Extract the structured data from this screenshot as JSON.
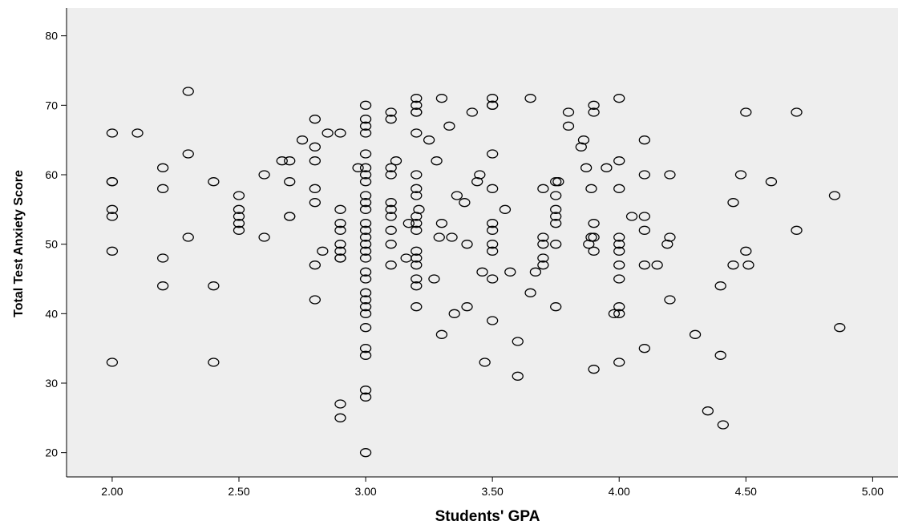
{
  "chart_data": {
    "type": "scatter",
    "xlabel": "Students' GPA",
    "ylabel": "Total Test Anxiety Score",
    "xlim": [
      1.82,
      5.1
    ],
    "ylim": [
      16.5,
      84
    ],
    "x_ticks": [
      "2.00",
      "2.50",
      "3.00",
      "3.50",
      "4.00",
      "4.50",
      "5.00"
    ],
    "y_ticks": [
      "20",
      "30",
      "40",
      "50",
      "60",
      "70",
      "80"
    ],
    "grid": false,
    "background": "#eeeeee",
    "marker": "hollow-circle",
    "points": [
      [
        2.0,
        66
      ],
      [
        2.0,
        59
      ],
      [
        2.0,
        59
      ],
      [
        2.0,
        55
      ],
      [
        2.0,
        54
      ],
      [
        2.0,
        49
      ],
      [
        2.0,
        33
      ],
      [
        2.1,
        66
      ],
      [
        2.2,
        61
      ],
      [
        2.2,
        58
      ],
      [
        2.2,
        48
      ],
      [
        2.2,
        44
      ],
      [
        2.3,
        72
      ],
      [
        2.3,
        63
      ],
      [
        2.3,
        51
      ],
      [
        2.4,
        59
      ],
      [
        2.4,
        44
      ],
      [
        2.4,
        33
      ],
      [
        2.5,
        57
      ],
      [
        2.5,
        55
      ],
      [
        2.5,
        54
      ],
      [
        2.5,
        53
      ],
      [
        2.5,
        52
      ],
      [
        2.6,
        60
      ],
      [
        2.6,
        51
      ],
      [
        2.67,
        62
      ],
      [
        2.7,
        62
      ],
      [
        2.7,
        59
      ],
      [
        2.7,
        54
      ],
      [
        2.7,
        54
      ],
      [
        2.75,
        65
      ],
      [
        2.8,
        68
      ],
      [
        2.8,
        64
      ],
      [
        2.8,
        62
      ],
      [
        2.8,
        58
      ],
      [
        2.8,
        56
      ],
      [
        2.8,
        47
      ],
      [
        2.8,
        42
      ],
      [
        2.83,
        49
      ],
      [
        2.85,
        66
      ],
      [
        2.9,
        66
      ],
      [
        2.9,
        55
      ],
      [
        2.9,
        53
      ],
      [
        2.9,
        52
      ],
      [
        2.9,
        50
      ],
      [
        2.9,
        49
      ],
      [
        2.9,
        48
      ],
      [
        2.9,
        48
      ],
      [
        2.9,
        27
      ],
      [
        2.9,
        25
      ],
      [
        2.97,
        61
      ],
      [
        3.0,
        70
      ],
      [
        3.0,
        68
      ],
      [
        3.0,
        67
      ],
      [
        3.0,
        66
      ],
      [
        3.0,
        63
      ],
      [
        3.0,
        61
      ],
      [
        3.0,
        60
      ],
      [
        3.0,
        59
      ],
      [
        3.0,
        57
      ],
      [
        3.0,
        56
      ],
      [
        3.0,
        55
      ],
      [
        3.0,
        53
      ],
      [
        3.0,
        52
      ],
      [
        3.0,
        51
      ],
      [
        3.0,
        50
      ],
      [
        3.0,
        49
      ],
      [
        3.0,
        48
      ],
      [
        3.0,
        46
      ],
      [
        3.0,
        45
      ],
      [
        3.0,
        43
      ],
      [
        3.0,
        42
      ],
      [
        3.0,
        41
      ],
      [
        3.0,
        40
      ],
      [
        3.0,
        38
      ],
      [
        3.0,
        35
      ],
      [
        3.0,
        34
      ],
      [
        3.0,
        29
      ],
      [
        3.0,
        28
      ],
      [
        3.0,
        20
      ],
      [
        3.1,
        69
      ],
      [
        3.1,
        68
      ],
      [
        3.1,
        61
      ],
      [
        3.1,
        60
      ],
      [
        3.1,
        56
      ],
      [
        3.1,
        55
      ],
      [
        3.1,
        54
      ],
      [
        3.1,
        52
      ],
      [
        3.1,
        50
      ],
      [
        3.1,
        47
      ],
      [
        3.12,
        62
      ],
      [
        3.16,
        48
      ],
      [
        3.17,
        53
      ],
      [
        3.2,
        71
      ],
      [
        3.2,
        70
      ],
      [
        3.2,
        69
      ],
      [
        3.2,
        69
      ],
      [
        3.2,
        66
      ],
      [
        3.2,
        60
      ],
      [
        3.2,
        58
      ],
      [
        3.2,
        57
      ],
      [
        3.2,
        54
      ],
      [
        3.2,
        53
      ],
      [
        3.2,
        52
      ],
      [
        3.2,
        49
      ],
      [
        3.2,
        48
      ],
      [
        3.2,
        47
      ],
      [
        3.2,
        45
      ],
      [
        3.2,
        44
      ],
      [
        3.2,
        41
      ],
      [
        3.21,
        55
      ],
      [
        3.25,
        65
      ],
      [
        3.27,
        45
      ],
      [
        3.28,
        62
      ],
      [
        3.29,
        51
      ],
      [
        3.3,
        71
      ],
      [
        3.3,
        53
      ],
      [
        3.3,
        37
      ],
      [
        3.33,
        67
      ],
      [
        3.34,
        51
      ],
      [
        3.35,
        40
      ],
      [
        3.36,
        57
      ],
      [
        3.39,
        56
      ],
      [
        3.4,
        50
      ],
      [
        3.4,
        41
      ],
      [
        3.42,
        69
      ],
      [
        3.44,
        59
      ],
      [
        3.45,
        60
      ],
      [
        3.46,
        46
      ],
      [
        3.47,
        33
      ],
      [
        3.5,
        71
      ],
      [
        3.5,
        70
      ],
      [
        3.5,
        70
      ],
      [
        3.5,
        63
      ],
      [
        3.5,
        58
      ],
      [
        3.5,
        53
      ],
      [
        3.5,
        52
      ],
      [
        3.5,
        50
      ],
      [
        3.5,
        49
      ],
      [
        3.5,
        45
      ],
      [
        3.5,
        39
      ],
      [
        3.55,
        55
      ],
      [
        3.57,
        46
      ],
      [
        3.6,
        36
      ],
      [
        3.6,
        31
      ],
      [
        3.65,
        71
      ],
      [
        3.65,
        43
      ],
      [
        3.67,
        46
      ],
      [
        3.7,
        58
      ],
      [
        3.7,
        51
      ],
      [
        3.7,
        50
      ],
      [
        3.7,
        48
      ],
      [
        3.7,
        47
      ],
      [
        3.75,
        59
      ],
      [
        3.75,
        57
      ],
      [
        3.75,
        55
      ],
      [
        3.75,
        54
      ],
      [
        3.75,
        53
      ],
      [
        3.75,
        50
      ],
      [
        3.75,
        41
      ],
      [
        3.76,
        59
      ],
      [
        3.8,
        69
      ],
      [
        3.8,
        67
      ],
      [
        3.85,
        64
      ],
      [
        3.86,
        65
      ],
      [
        3.87,
        61
      ],
      [
        3.88,
        50
      ],
      [
        3.89,
        58
      ],
      [
        3.89,
        51
      ],
      [
        3.9,
        70
      ],
      [
        3.9,
        69
      ],
      [
        3.9,
        53
      ],
      [
        3.9,
        51
      ],
      [
        3.9,
        49
      ],
      [
        3.9,
        32
      ],
      [
        3.95,
        61
      ],
      [
        3.98,
        40
      ],
      [
        4.0,
        71
      ],
      [
        4.0,
        62
      ],
      [
        4.0,
        58
      ],
      [
        4.0,
        51
      ],
      [
        4.0,
        50
      ],
      [
        4.0,
        49
      ],
      [
        4.0,
        47
      ],
      [
        4.0,
        45
      ],
      [
        4.0,
        41
      ],
      [
        4.0,
        40
      ],
      [
        4.0,
        33
      ],
      [
        4.05,
        54
      ],
      [
        4.1,
        65
      ],
      [
        4.1,
        60
      ],
      [
        4.1,
        54
      ],
      [
        4.1,
        52
      ],
      [
        4.1,
        47
      ],
      [
        4.1,
        35
      ],
      [
        4.15,
        47
      ],
      [
        4.19,
        50
      ],
      [
        4.2,
        60
      ],
      [
        4.2,
        51
      ],
      [
        4.2,
        42
      ],
      [
        4.3,
        37
      ],
      [
        4.35,
        26
      ],
      [
        4.4,
        44
      ],
      [
        4.4,
        34
      ],
      [
        4.41,
        24
      ],
      [
        4.45,
        56
      ],
      [
        4.45,
        47
      ],
      [
        4.48,
        60
      ],
      [
        4.5,
        69
      ],
      [
        4.5,
        49
      ],
      [
        4.51,
        47
      ],
      [
        4.6,
        59
      ],
      [
        4.7,
        69
      ],
      [
        4.7,
        52
      ],
      [
        4.85,
        57
      ],
      [
        4.87,
        38
      ]
    ]
  }
}
